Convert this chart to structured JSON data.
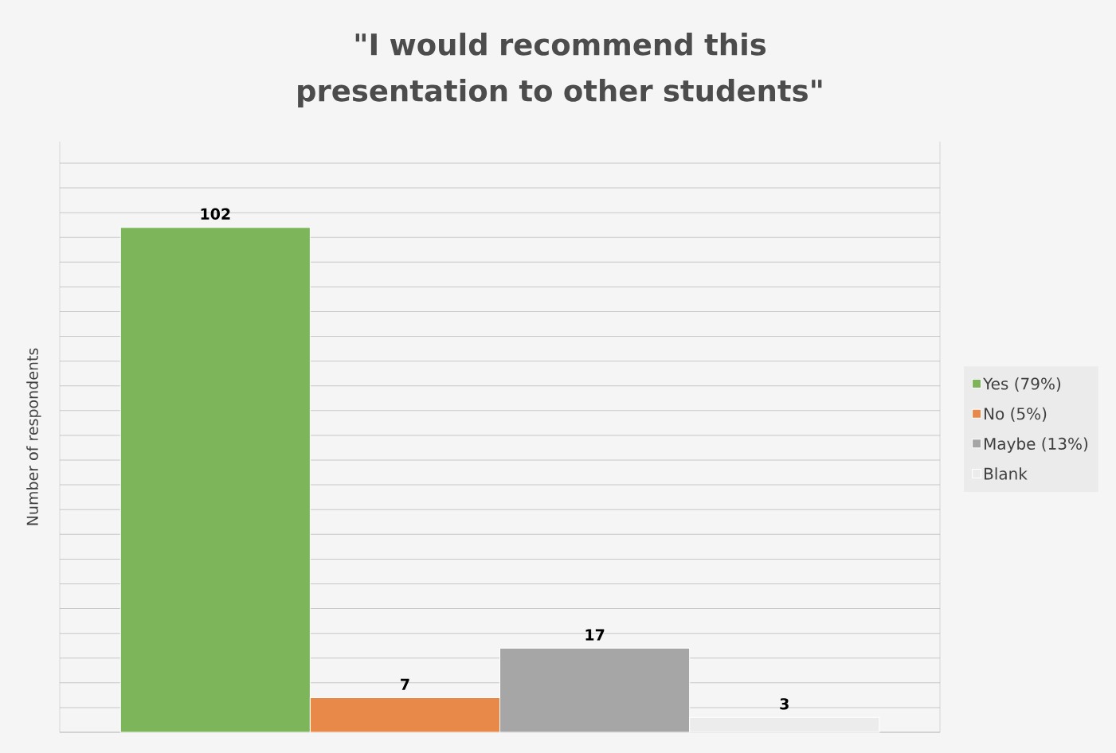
{
  "chart_data": {
    "type": "bar",
    "title": "\"I would recommend this presentation to other students\"",
    "ylabel": "Number of respondents",
    "categories": [
      null
    ],
    "series": [
      {
        "name": "Yes (79%)",
        "color": "#7db55a",
        "values": [
          102
        ]
      },
      {
        "name": "No (5%)",
        "color": "#e8894a",
        "values": [
          7
        ]
      },
      {
        "name": "Maybe (13%)",
        "color": "#a6a6a6",
        "values": [
          17
        ]
      },
      {
        "name": "Blank",
        "color": "#ececec",
        "values": [
          3
        ]
      }
    ],
    "grid": "y",
    "legend": "right",
    "data_labels": true
  }
}
